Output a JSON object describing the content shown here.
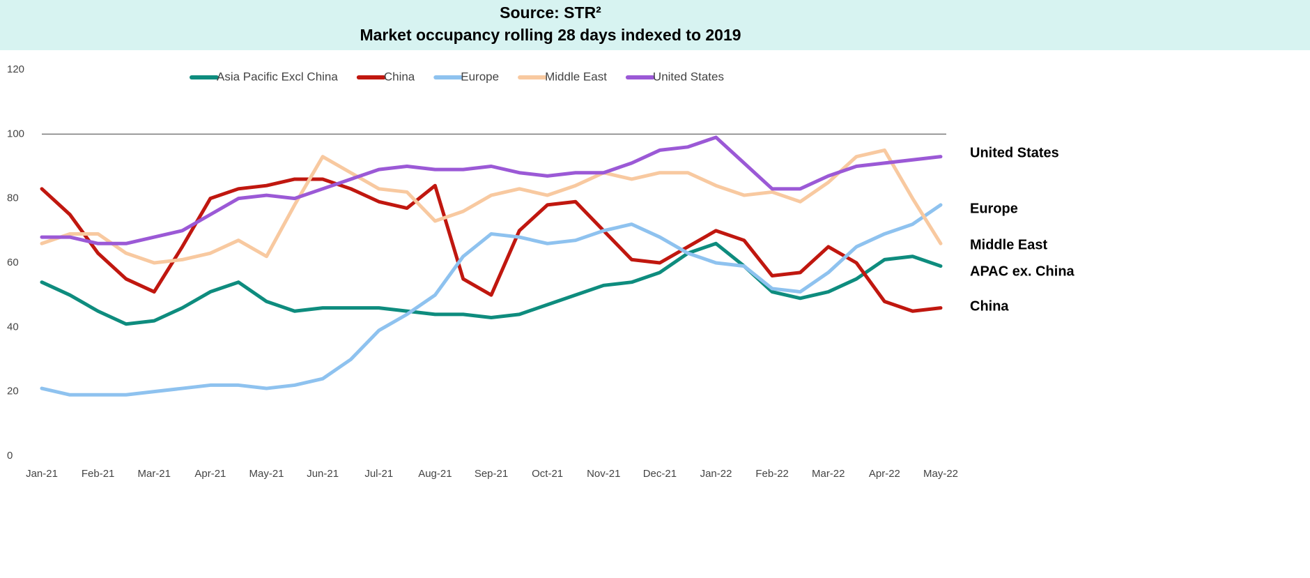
{
  "chart_data": {
    "type": "line",
    "title": "Source: STR²",
    "subtitle": "Market occupancy rolling 28 days indexed to 2019",
    "categories": [
      "Jan-21",
      null,
      "Feb-21",
      null,
      "Mar-21",
      null,
      "Apr-21",
      null,
      "May-21",
      null,
      "Jun-21",
      null,
      "Jul-21",
      null,
      "Aug-21",
      null,
      "Sep-21",
      null,
      "Oct-21",
      null,
      "Nov-21",
      null,
      "Dec-21",
      null,
      "Jan-22",
      null,
      "Feb-22",
      null,
      "Mar-22",
      null,
      "Apr-22",
      null,
      "May-22"
    ],
    "series": [
      {
        "name": "Asia Pacific Excl China",
        "color": "#0e8c7e",
        "values": [
          54,
          50,
          45,
          41,
          42,
          46,
          51,
          54,
          48,
          45,
          46,
          46,
          46,
          45,
          44,
          44,
          43,
          44,
          47,
          50,
          53,
          54,
          57,
          63,
          66,
          59,
          51,
          49,
          51,
          55,
          61,
          62,
          59
        ]
      },
      {
        "name": "China",
        "color": "#c0170f",
        "values": [
          83,
          75,
          63,
          55,
          51,
          65,
          80,
          83,
          84,
          86,
          86,
          83,
          79,
          77,
          84,
          55,
          50,
          70,
          78,
          79,
          70,
          61,
          60,
          65,
          70,
          67,
          56,
          57,
          65,
          60,
          48,
          45,
          46
        ]
      },
      {
        "name": "Europe",
        "color": "#8ec2ef",
        "values": [
          21,
          19,
          19,
          19,
          20,
          21,
          22,
          22,
          21,
          22,
          24,
          30,
          39,
          44,
          50,
          62,
          69,
          68,
          66,
          67,
          70,
          72,
          68,
          63,
          60,
          59,
          52,
          51,
          57,
          65,
          69,
          72,
          78
        ]
      },
      {
        "name": "Middle East",
        "color": "#f8c9a0",
        "values": [
          66,
          69,
          69,
          63,
          60,
          61,
          63,
          67,
          62,
          78,
          93,
          88,
          83,
          82,
          73,
          76,
          81,
          83,
          81,
          84,
          88,
          86,
          88,
          88,
          84,
          81,
          82,
          79,
          85,
          93,
          95,
          80,
          66
        ]
      },
      {
        "name": "United States",
        "color": "#9b59d6",
        "values": [
          68,
          68,
          66,
          66,
          68,
          70,
          75,
          80,
          81,
          80,
          83,
          86,
          89,
          90,
          89,
          89,
          90,
          88,
          87,
          88,
          88,
          91,
          95,
          96,
          99,
          91,
          83,
          83,
          87,
          90,
          91,
          92,
          93
        ]
      }
    ],
    "ylim": [
      0,
      120
    ],
    "yticks": [
      0,
      20,
      40,
      60,
      80,
      100,
      120
    ],
    "reference_line": 100,
    "legend": "top",
    "annotations": [
      "United States",
      "Europe",
      "Middle East",
      "APAC ex. China",
      "China"
    ]
  }
}
